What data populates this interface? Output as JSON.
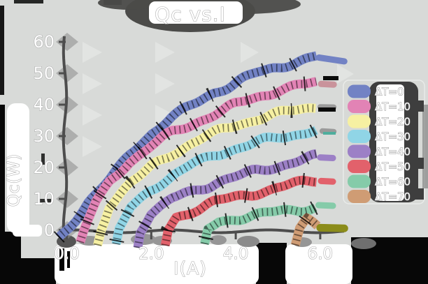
{
  "title": "Qc vs.I",
  "axes": {
    "xlabel": "I(A)",
    "ylabel": "Qc(W)",
    "x_tick_labels": [
      "0.0",
      "2.0",
      "4.0",
      "6.0"
    ],
    "y_tick_labels": [
      "0",
      "10",
      "20",
      "30",
      "40",
      "50",
      "60"
    ]
  },
  "legend": {
    "items": [
      {
        "label": "ΔT=0",
        "color": "#7282c4"
      },
      {
        "label": "ΔT=10",
        "color": "#e283b5"
      },
      {
        "label": "ΔT=20",
        "color": "#f6f0a2"
      },
      {
        "label": "ΔT=30",
        "color": "#90d5e6"
      },
      {
        "label": "ΔT=40",
        "color": "#9c80c6"
      },
      {
        "label": "ΔT=50",
        "color": "#e2616b"
      },
      {
        "label": "ΔT=60",
        "color": "#85cba9"
      },
      {
        "label": "ΔT=70",
        "color": "#cf9c74"
      }
    ]
  },
  "style": {
    "background": "#d8dad8",
    "text_color": "#ffffff",
    "text_outline": "#a9a9a9",
    "shadow_dark": "#4b4b49",
    "legend_panel_dark": "#3e3e3e",
    "axis_color": "#4d4d4d",
    "tip_gray": "#9a9a9a",
    "olive_tip": "#8b8c1a"
  },
  "chart_data": {
    "type": "line",
    "title": "Qc vs.I",
    "xlabel": "I(A)",
    "ylabel": "Qc(W)",
    "xlim": [
      -0.2,
      6.8
    ],
    "ylim": [
      -6,
      62
    ],
    "x_ticks": [
      0,
      2,
      4,
      6
    ],
    "y_ticks": [
      0,
      10,
      20,
      30,
      40,
      50,
      60
    ],
    "grid": false,
    "legend_position": "center right",
    "series": [
      {
        "name": "ΔT=0",
        "color": "#7282c4",
        "cap_color": "#7282c4",
        "points": [
          [
            -0.18,
            -3
          ],
          [
            0,
            0
          ],
          [
            0.5,
            9
          ],
          [
            1,
            16
          ],
          [
            1.5,
            24
          ],
          [
            2,
            31
          ],
          [
            2.5,
            36
          ],
          [
            3,
            40
          ],
          [
            3.5,
            44
          ],
          [
            4,
            47
          ],
          [
            4.5,
            50
          ],
          [
            5,
            52
          ],
          [
            5.5,
            54
          ],
          [
            5.92,
            55.3
          ]
        ],
        "cap": [
          [
            5.97,
            55.0
          ],
          [
            6.57,
            53.8
          ]
        ],
        "cap_width": 9
      },
      {
        "name": "ΔT=10",
        "color": "#e283b5",
        "cap_color": "#c9939b",
        "points": [
          [
            0.32,
            -4
          ],
          [
            0.42,
            0
          ],
          [
            0.7,
            9
          ],
          [
            1,
            15
          ],
          [
            1.5,
            22
          ],
          [
            2,
            27
          ],
          [
            2.5,
            31
          ],
          [
            3,
            34
          ],
          [
            3.5,
            37
          ],
          [
            4,
            40
          ],
          [
            4.5,
            42.5
          ],
          [
            5,
            44.5
          ],
          [
            5.5,
            46
          ],
          [
            5.92,
            47
          ]
        ],
        "cap": [
          [
            6.02,
            46.6
          ],
          [
            6.32,
            46.4
          ]
        ],
        "cap_width": 9
      },
      {
        "name": "ΔT=20",
        "color": "#f6f0a2",
        "cap_color": "#9a9a9a",
        "points": [
          [
            0.72,
            -5
          ],
          [
            0.8,
            0
          ],
          [
            1,
            8
          ],
          [
            1.5,
            15
          ],
          [
            2,
            20
          ],
          [
            2.5,
            24.5
          ],
          [
            3,
            28
          ],
          [
            3.5,
            31
          ],
          [
            4,
            33.5
          ],
          [
            4.5,
            35.5
          ],
          [
            5,
            37
          ],
          [
            5.5,
            38.5
          ],
          [
            5.9,
            39.5
          ]
        ],
        "cap": [
          [
            6.0,
            39.3
          ],
          [
            6.32,
            39.2
          ]
        ],
        "cap_width": 8
      },
      {
        "name": "ΔT=30",
        "color": "#90d5e6",
        "cap_color": "#9a9a9a",
        "points": [
          [
            1.18,
            -5
          ],
          [
            1.25,
            0
          ],
          [
            1.5,
            7
          ],
          [
            2,
            13
          ],
          [
            2.5,
            17.5
          ],
          [
            3,
            21
          ],
          [
            3.5,
            24
          ],
          [
            4,
            26
          ],
          [
            4.5,
            28
          ],
          [
            5,
            29.5
          ],
          [
            5.5,
            30.8
          ],
          [
            5.9,
            32
          ]
        ],
        "cap": [
          [
            6.05,
            31.6
          ],
          [
            6.32,
            31.4
          ]
        ],
        "cap_width": 8
      },
      {
        "name": "ΔT=40",
        "color": "#9c80c6",
        "cap_color": "#9c80c6",
        "points": [
          [
            1.68,
            -5
          ],
          [
            1.75,
            0
          ],
          [
            2,
            5.5
          ],
          [
            2.5,
            10
          ],
          [
            3,
            12.5
          ],
          [
            3.5,
            15
          ],
          [
            4,
            17
          ],
          [
            4.5,
            19
          ],
          [
            5,
            20.5
          ],
          [
            5.5,
            22
          ],
          [
            5.9,
            23.5
          ]
        ],
        "cap": [
          [
            6.0,
            23.2
          ],
          [
            6.3,
            23.0
          ]
        ],
        "cap_width": 9
      },
      {
        "name": "ΔT=50",
        "color": "#e2616b",
        "cap_color": "#e2616b",
        "points": [
          [
            2.32,
            -5
          ],
          [
            2.4,
            0
          ],
          [
            2.6,
            4
          ],
          [
            3,
            6.5
          ],
          [
            3.5,
            9
          ],
          [
            4,
            10.5
          ],
          [
            4.5,
            12
          ],
          [
            5,
            13.5
          ],
          [
            5.5,
            15
          ],
          [
            5.9,
            16
          ]
        ],
        "cap": [
          [
            6.02,
            15.7
          ],
          [
            6.3,
            15.5
          ]
        ],
        "cap_width": 9
      },
      {
        "name": "ΔT=60",
        "color": "#85cba9",
        "cap_color": "#85cba9",
        "points": [
          [
            3.27,
            -5
          ],
          [
            3.35,
            0
          ],
          [
            3.6,
            2.5
          ],
          [
            4,
            3.8
          ],
          [
            4.5,
            5
          ],
          [
            5,
            5.8
          ],
          [
            5.5,
            6.6
          ],
          [
            5.88,
            7.5
          ]
        ],
        "cap": [
          [
            5.96,
            8.0
          ],
          [
            6.3,
            7.8
          ]
        ],
        "cap_width": 9
      },
      {
        "name": "ΔT=70",
        "color": "#cf9c74",
        "cap_color": "#8b8c1a",
        "points": [
          [
            5.4,
            -4
          ],
          [
            5.5,
            1
          ],
          [
            5.68,
            3.5
          ],
          [
            5.85,
            2
          ],
          [
            5.95,
            1
          ]
        ],
        "cap": [
          [
            6.0,
            0.8
          ],
          [
            6.57,
            0.6
          ]
        ],
        "cap_width": 11
      }
    ]
  }
}
